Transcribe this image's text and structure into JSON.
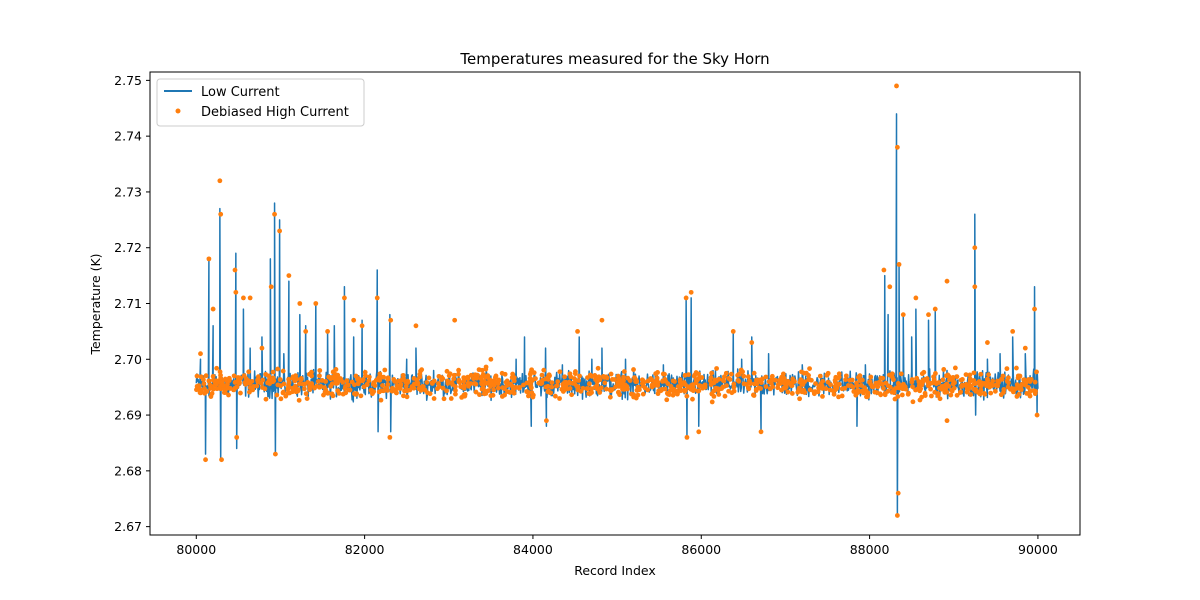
{
  "chart_data": {
    "type": "line",
    "title": "Temperatures measured for the Sky Horn",
    "xlabel": "Record Index",
    "ylabel": "Temperature (K)",
    "xlim": [
      79450,
      90500
    ],
    "ylim": [
      2.6685,
      2.7515
    ],
    "xticks": [
      80000,
      82000,
      84000,
      86000,
      88000,
      90000
    ],
    "xtick_labels": [
      "80000",
      "82000",
      "84000",
      "86000",
      "88000",
      "90000"
    ],
    "yticks": [
      2.67,
      2.68,
      2.69,
      2.7,
      2.71,
      2.72,
      2.73,
      2.74,
      2.75
    ],
    "ytick_labels": [
      "2.67",
      "2.68",
      "2.69",
      "2.70",
      "2.71",
      "2.72",
      "2.73",
      "2.74",
      "2.75"
    ],
    "grid": false,
    "legend_position": "top-left",
    "colors": {
      "low": "#1f77b4",
      "high": "#ff7f0e"
    },
    "series": [
      {
        "name": "Low Current",
        "kind": "line",
        "baseline": 2.6955,
        "noise_amplitude": 0.0022,
        "x_range": [
          80000,
          90000
        ],
        "points": 1400,
        "spikes": [
          [
            80050,
            2.7
          ],
          [
            80110,
            2.683
          ],
          [
            80150,
            2.718
          ],
          [
            80200,
            2.706
          ],
          [
            80280,
            2.727
          ],
          [
            80290,
            2.682
          ],
          [
            80470,
            2.719
          ],
          [
            80480,
            2.684
          ],
          [
            80560,
            2.709
          ],
          [
            80640,
            2.702
          ],
          [
            80780,
            2.704
          ],
          [
            80880,
            2.718
          ],
          [
            80930,
            2.728
          ],
          [
            80940,
            2.683
          ],
          [
            80990,
            2.725
          ],
          [
            81040,
            2.701
          ],
          [
            81100,
            2.714
          ],
          [
            81230,
            2.708
          ],
          [
            81300,
            2.706
          ],
          [
            81420,
            2.71
          ],
          [
            81560,
            2.705
          ],
          [
            81640,
            2.706
          ],
          [
            81760,
            2.713
          ],
          [
            81870,
            2.704
          ],
          [
            81970,
            2.707
          ],
          [
            82150,
            2.716
          ],
          [
            82160,
            2.687
          ],
          [
            82300,
            2.708
          ],
          [
            82310,
            2.687
          ],
          [
            82500,
            2.7
          ],
          [
            82610,
            2.702
          ],
          [
            82820,
            2.698
          ],
          [
            83000,
            2.697
          ],
          [
            83500,
            2.697
          ],
          [
            83800,
            2.7
          ],
          [
            83900,
            2.704
          ],
          [
            83980,
            2.688
          ],
          [
            84150,
            2.702
          ],
          [
            84160,
            2.688
          ],
          [
            84350,
            2.699
          ],
          [
            84550,
            2.704
          ],
          [
            84700,
            2.7
          ],
          [
            84820,
            2.702
          ],
          [
            85100,
            2.7
          ],
          [
            85550,
            2.699
          ],
          [
            85820,
            2.711
          ],
          [
            85830,
            2.686
          ],
          [
            85880,
            2.711
          ],
          [
            85970,
            2.688
          ],
          [
            86380,
            2.705
          ],
          [
            86480,
            2.7
          ],
          [
            86600,
            2.704
          ],
          [
            86710,
            2.687
          ],
          [
            86800,
            2.701
          ],
          [
            87200,
            2.699
          ],
          [
            87600,
            2.697
          ],
          [
            87850,
            2.688
          ],
          [
            87950,
            2.699
          ],
          [
            88180,
            2.715
          ],
          [
            88220,
            2.708
          ],
          [
            88320,
            2.744
          ],
          [
            88330,
            2.672
          ],
          [
            88350,
            2.717
          ],
          [
            88400,
            2.708
          ],
          [
            88500,
            2.704
          ],
          [
            88550,
            2.709
          ],
          [
            88700,
            2.707
          ],
          [
            88780,
            2.709
          ],
          [
            88920,
            2.698
          ],
          [
            89050,
            2.695
          ],
          [
            89250,
            2.726
          ],
          [
            89260,
            2.69
          ],
          [
            89400,
            2.7
          ],
          [
            89550,
            2.701
          ],
          [
            89700,
            2.704
          ],
          [
            89850,
            2.701
          ],
          [
            89960,
            2.713
          ],
          [
            89990,
            2.69
          ]
        ]
      },
      {
        "name": "Debiased High Current",
        "kind": "scatter",
        "baseline": 2.6955,
        "noise_amplitude": 0.0024,
        "x_range": [
          80000,
          90000
        ],
        "points": 1100,
        "outliers": [
          [
            80050,
            2.701
          ],
          [
            80110,
            2.682
          ],
          [
            80150,
            2.718
          ],
          [
            80200,
            2.709
          ],
          [
            80280,
            2.732
          ],
          [
            80290,
            2.726
          ],
          [
            80300,
            2.682
          ],
          [
            80460,
            2.716
          ],
          [
            80470,
            2.712
          ],
          [
            80480,
            2.686
          ],
          [
            80560,
            2.711
          ],
          [
            80640,
            2.711
          ],
          [
            80780,
            2.702
          ],
          [
            80890,
            2.713
          ],
          [
            80930,
            2.726
          ],
          [
            80940,
            2.683
          ],
          [
            80990,
            2.723
          ],
          [
            81100,
            2.715
          ],
          [
            81230,
            2.71
          ],
          [
            81300,
            2.705
          ],
          [
            81420,
            2.71
          ],
          [
            81560,
            2.705
          ],
          [
            81760,
            2.711
          ],
          [
            81870,
            2.707
          ],
          [
            81970,
            2.706
          ],
          [
            82150,
            2.711
          ],
          [
            82310,
            2.707
          ],
          [
            82300,
            2.686
          ],
          [
            82610,
            2.706
          ],
          [
            83070,
            2.707
          ],
          [
            83500,
            2.7
          ],
          [
            84530,
            2.705
          ],
          [
            84820,
            2.707
          ],
          [
            84160,
            2.689
          ],
          [
            85820,
            2.711
          ],
          [
            85880,
            2.712
          ],
          [
            85830,
            2.686
          ],
          [
            85970,
            2.687
          ],
          [
            86380,
            2.705
          ],
          [
            86600,
            2.703
          ],
          [
            86710,
            2.687
          ],
          [
            88170,
            2.716
          ],
          [
            88240,
            2.713
          ],
          [
            88320,
            2.749
          ],
          [
            88330,
            2.738
          ],
          [
            88350,
            2.717
          ],
          [
            88330,
            2.672
          ],
          [
            88340,
            2.676
          ],
          [
            88400,
            2.708
          ],
          [
            88550,
            2.711
          ],
          [
            88700,
            2.708
          ],
          [
            88780,
            2.709
          ],
          [
            88920,
            2.714
          ],
          [
            88920,
            2.689
          ],
          [
            89250,
            2.72
          ],
          [
            89250,
            2.713
          ],
          [
            89400,
            2.703
          ],
          [
            89700,
            2.705
          ],
          [
            89850,
            2.702
          ],
          [
            89960,
            2.709
          ],
          [
            89990,
            2.69
          ]
        ]
      }
    ]
  }
}
